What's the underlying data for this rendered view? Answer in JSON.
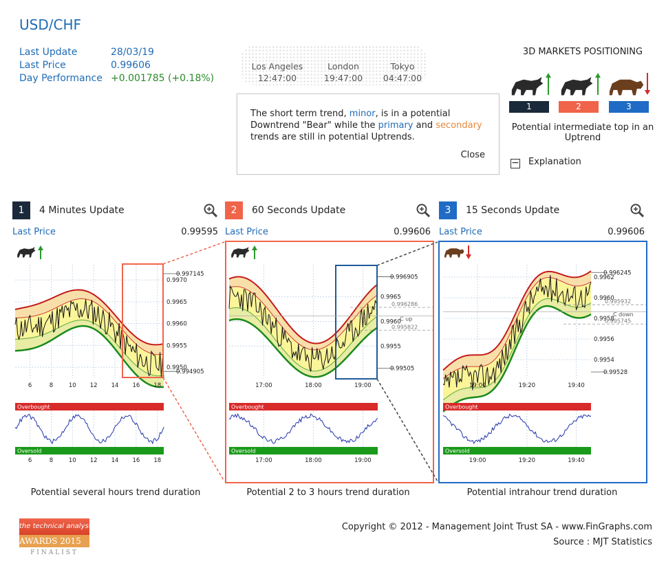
{
  "header": {
    "pair": "USD/CHF",
    "labels": [
      "Last Update",
      "Last Price",
      "Day Performance"
    ],
    "values": [
      "28/03/19",
      "0.99606",
      "+0.001785 (+0.18%)"
    ]
  },
  "clocks": [
    {
      "city": "Los Angeles",
      "time": "12:47:00"
    },
    {
      "city": "London",
      "time": "19:47:00"
    },
    {
      "city": "Tokyo",
      "time": "04:47:00"
    }
  ],
  "message": {
    "p1": "The short term trend, ",
    "minor": "minor",
    "p2": ", is in a potential Downtrend \"Bear\" while the ",
    "primary": "primary",
    "p3": " and ",
    "secondary": "secondary",
    "p4": " trends are still in potential Uptrends.",
    "close": "Close"
  },
  "positioning": {
    "title": "3D MARKETS POSITIONING",
    "badges": [
      {
        "n": "1",
        "color": "#1b2a3a",
        "animal": "bull",
        "dir": "up"
      },
      {
        "n": "2",
        "color": "#f0644a",
        "animal": "bull",
        "dir": "up"
      },
      {
        "n": "3",
        "color": "#1f6bc5",
        "animal": "bear",
        "dir": "down"
      }
    ],
    "desc": "Potential intermediate top in an Uptrend",
    "explanation": "Explanation",
    "icon_colors": {
      "up": "#2a9a2a",
      "down": "#d32a2a"
    }
  },
  "chart_data": [
    {
      "type": "line",
      "panel": "1",
      "title": "4 Minutes Update",
      "accent": "#1b2a3a",
      "last_price_label": "Last Price",
      "last_price": "0.99595",
      "trend": "bull",
      "x_ticks": [
        "6",
        "8",
        "10",
        "12",
        "14",
        "16",
        "18"
      ],
      "y_ticks": [
        "0.9970",
        "0.9965",
        "0.9960",
        "0.9955",
        "0.9950"
      ],
      "y_tick_vals": [
        0.997,
        0.9965,
        0.996,
        0.9955,
        0.995
      ],
      "extra_labels": [
        {
          "text": "0.997145",
          "v": 0.997145
        },
        {
          "text": "0.994905",
          "v": 0.994905
        }
      ],
      "ylim": [
        0.99475,
        0.99735
      ],
      "overbought": "Overbought",
      "oversold": "Oversold",
      "caption": "Potential several hours trend duration"
    },
    {
      "type": "line",
      "panel": "2",
      "title": "60 Seconds Update",
      "accent": "#f0644a",
      "last_price_label": "Last Price",
      "last_price": "0.99606",
      "trend": "bull",
      "x_ticks": [
        "17:00",
        "18:00",
        "19:00"
      ],
      "y_ticks": [
        "0.9965",
        "0.9960",
        "0.9955"
      ],
      "y_tick_vals": [
        0.9965,
        0.996,
        0.9955
      ],
      "extra_labels": [
        {
          "text": "0.996905",
          "v": 0.996905
        },
        {
          "text": "0.99505",
          "v": 0.99505
        }
      ],
      "dashed": [
        {
          "text": "0.996286",
          "v": 0.996286
        },
        {
          "text": "0.995822",
          "v": 0.995822
        }
      ],
      "cross_label": "C up",
      "ylim": [
        0.99485,
        0.99715
      ],
      "overbought": "Overbought",
      "oversold": "Oversold",
      "caption": "Potential 2 to 3 hours trend duration"
    },
    {
      "type": "line",
      "panel": "3",
      "title": "15 Seconds Update",
      "accent": "#1f6bc5",
      "last_price_label": "Last Price",
      "last_price": "0.99606",
      "trend": "bear",
      "x_ticks": [
        "19:00",
        "19:20",
        "19:40"
      ],
      "y_ticks": [
        "0.9962",
        "0.9960",
        "0.9958",
        "0.9956",
        "0.9954"
      ],
      "y_tick_vals": [
        0.9962,
        0.996,
        0.9958,
        0.9956,
        0.9954
      ],
      "extra_labels": [
        {
          "text": "0.996245",
          "v": 0.996245
        },
        {
          "text": "0.99528",
          "v": 0.99528
        }
      ],
      "dashed": [
        {
          "text": "0.995932",
          "v": 0.995932
        },
        {
          "text": "0.995745",
          "v": 0.995745
        }
      ],
      "cross_label": "C down",
      "ylim": [
        0.99522,
        0.99632
      ],
      "overbought": "Overbought",
      "oversold": "Oversold",
      "caption": "Potential intrahour trend duration"
    }
  ],
  "footer": {
    "copyright": "Copyright © 2012 - Management Joint Trust SA - www.FinGraphs.com",
    "source": "Source : MJT Statistics",
    "award": [
      "the technical analyst",
      "AWARDS 2015",
      "FINALIST"
    ]
  }
}
